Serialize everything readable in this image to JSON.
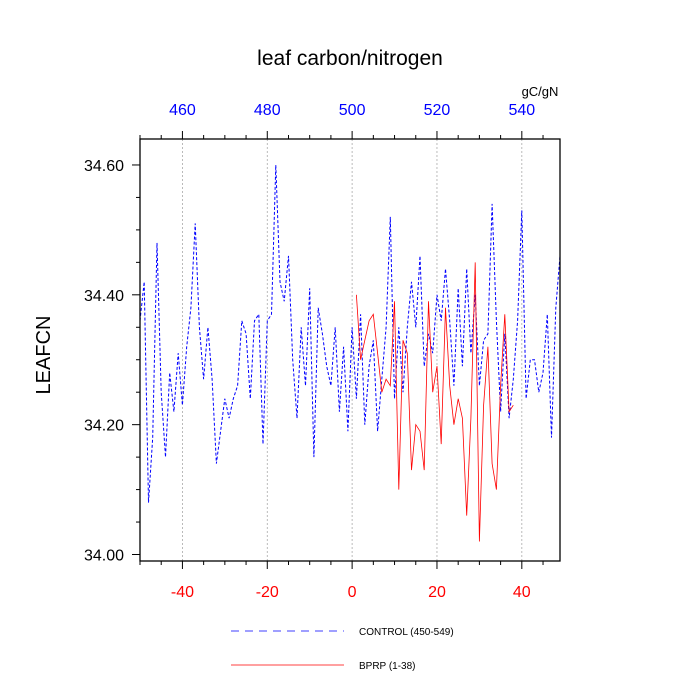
{
  "chart_data": {
    "type": "line",
    "title": "leaf carbon/nitrogen",
    "ylabel": "LEAFCN",
    "units": "gC/gN",
    "xlim": [
      -50,
      49
    ],
    "ylim": [
      33.99,
      34.64
    ],
    "bottom_axis": {
      "ticks": [
        -40,
        -20,
        0,
        20,
        40
      ],
      "tick_labels": [
        "-40",
        "-20",
        "0",
        "20",
        "40"
      ],
      "color": "#ff0000"
    },
    "top_axis": {
      "ticks": [
        460,
        480,
        500,
        520,
        540
      ],
      "tick_labels": [
        "460",
        "480",
        "500",
        "520",
        "540"
      ],
      "color": "#0000ff"
    },
    "left_axis": {
      "ticks": [
        34.0,
        34.2,
        34.4,
        34.6
      ],
      "tick_labels": [
        "34.00",
        "34.20",
        "34.40",
        "34.60"
      ]
    },
    "grid": "vertical dotted at major ticks",
    "legend_position": "bottom",
    "series": [
      {
        "name": "CONTROL (450-549)",
        "color": "#0000ff",
        "style": "dashed",
        "x": [
          -50,
          -49,
          -48,
          -47,
          -46,
          -45,
          -44,
          -43,
          -42,
          -41,
          -40,
          -39,
          -38,
          -37,
          -36,
          -35,
          -34,
          -33,
          -32,
          -31,
          -30,
          -29,
          -28,
          -27,
          -26,
          -25,
          -24,
          -23,
          -22,
          -21,
          -20,
          -19,
          -18,
          -17,
          -16,
          -15,
          -14,
          -13,
          -12,
          -11,
          -10,
          -9,
          -8,
          -7,
          -6,
          -5,
          -4,
          -3,
          -2,
          -1,
          0,
          1,
          2,
          3,
          4,
          5,
          6,
          7,
          8,
          9,
          10,
          11,
          12,
          13,
          14,
          15,
          16,
          17,
          18,
          19,
          20,
          21,
          22,
          23,
          24,
          25,
          26,
          27,
          28,
          29,
          30,
          31,
          32,
          33,
          34,
          35,
          36,
          37,
          38,
          39,
          40,
          41,
          42,
          43,
          44,
          45,
          46,
          47,
          48,
          49
        ],
        "values": [
          34.36,
          34.42,
          34.08,
          34.18,
          34.48,
          34.25,
          34.15,
          34.28,
          34.22,
          34.31,
          34.23,
          34.32,
          34.38,
          34.51,
          34.35,
          34.27,
          34.35,
          34.27,
          34.14,
          34.19,
          34.24,
          34.21,
          34.24,
          34.26,
          34.36,
          34.34,
          34.24,
          34.36,
          34.37,
          34.17,
          34.36,
          34.37,
          34.6,
          34.42,
          34.39,
          34.46,
          34.3,
          34.21,
          34.35,
          34.26,
          34.41,
          34.15,
          34.38,
          34.34,
          34.29,
          34.26,
          34.35,
          34.22,
          34.32,
          34.19,
          34.35,
          34.24,
          34.37,
          34.2,
          34.29,
          34.33,
          34.19,
          34.27,
          34.35,
          34.52,
          34.24,
          34.35,
          34.25,
          34.35,
          34.42,
          34.35,
          34.46,
          34.29,
          34.34,
          34.31,
          34.4,
          34.36,
          34.44,
          34.36,
          34.26,
          34.41,
          34.29,
          34.44,
          34.31,
          34.4,
          34.26,
          34.33,
          34.34,
          34.54,
          34.36,
          34.22,
          34.34,
          34.21,
          34.27,
          34.36,
          34.53,
          34.24,
          34.3,
          34.3,
          34.25,
          34.28,
          34.37,
          34.18,
          34.38,
          34.46
        ]
      },
      {
        "name": "BPRP (1-38)",
        "color": "#ff0000",
        "style": "solid",
        "x": [
          1,
          2,
          3,
          4,
          5,
          6,
          7,
          8,
          9,
          10,
          11,
          12,
          13,
          14,
          15,
          16,
          17,
          18,
          19,
          20,
          21,
          22,
          23,
          24,
          25,
          26,
          27,
          28,
          29,
          30,
          31,
          32,
          33,
          34,
          35,
          36,
          37,
          38
        ],
        "values": [
          34.4,
          34.3,
          34.33,
          34.36,
          34.37,
          34.31,
          34.25,
          34.27,
          34.26,
          34.39,
          34.1,
          34.33,
          34.31,
          34.13,
          34.2,
          34.19,
          34.13,
          34.39,
          34.25,
          34.29,
          34.17,
          34.38,
          34.26,
          34.2,
          34.24,
          34.21,
          34.06,
          34.21,
          34.45,
          34.02,
          34.23,
          34.32,
          34.14,
          34.1,
          34.26,
          34.37,
          34.22,
          34.23
        ]
      }
    ]
  }
}
